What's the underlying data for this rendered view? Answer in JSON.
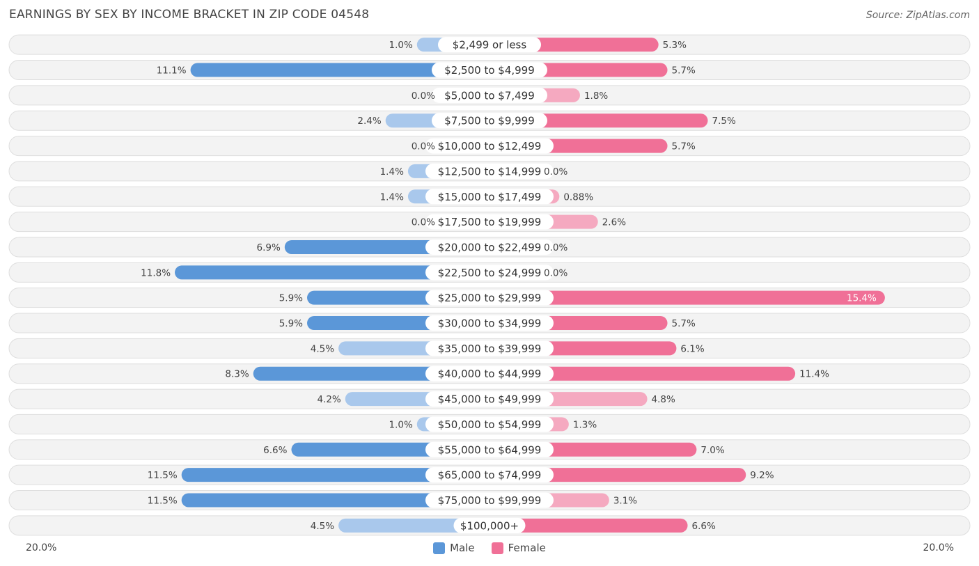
{
  "title": "EARNINGS BY SEX BY INCOME BRACKET IN ZIP CODE 04548",
  "source": "Source: ZipAtlas.com",
  "colors": {
    "male": "#5b97d8",
    "male_light": "#a9c8ec",
    "female": "#f07097",
    "female_light": "#f5a9c0"
  },
  "chart_data": {
    "type": "bar",
    "orientation": "horizontal-diverging",
    "title": "EARNINGS BY SEX BY INCOME BRACKET IN ZIP CODE 04548",
    "categories": [
      "$2,499 or less",
      "$2,500 to $4,999",
      "$5,000 to $7,499",
      "$7,500 to $9,999",
      "$10,000 to $12,499",
      "$12,500 to $14,999",
      "$15,000 to $17,499",
      "$17,500 to $19,999",
      "$20,000 to $22,499",
      "$22,500 to $24,999",
      "$25,000 to $29,999",
      "$30,000 to $34,999",
      "$35,000 to $39,999",
      "$40,000 to $44,999",
      "$45,000 to $49,999",
      "$50,000 to $54,999",
      "$55,000 to $64,999",
      "$65,000 to $74,999",
      "$75,000 to $99,999",
      "$100,000+"
    ],
    "series": [
      {
        "name": "Male",
        "values": [
          1.0,
          11.1,
          0.0,
          2.4,
          0.0,
          1.4,
          1.4,
          0.0,
          6.9,
          11.8,
          5.9,
          5.9,
          4.5,
          8.3,
          4.2,
          1.0,
          6.6,
          11.5,
          11.5,
          4.5
        ],
        "labels": [
          "1.0%",
          "11.1%",
          "0.0%",
          "2.4%",
          "0.0%",
          "1.4%",
          "1.4%",
          "0.0%",
          "6.9%",
          "11.8%",
          "5.9%",
          "5.9%",
          "4.5%",
          "8.3%",
          "4.2%",
          "1.0%",
          "6.6%",
          "11.5%",
          "11.5%",
          "4.5%"
        ]
      },
      {
        "name": "Female",
        "values": [
          5.3,
          5.7,
          1.8,
          7.5,
          5.7,
          0.0,
          0.88,
          2.6,
          0.0,
          0.0,
          15.4,
          5.7,
          6.1,
          11.4,
          4.8,
          1.3,
          7.0,
          9.2,
          3.1,
          6.6
        ],
        "labels": [
          "5.3%",
          "5.7%",
          "1.8%",
          "7.5%",
          "5.7%",
          "0.0%",
          "0.88%",
          "2.6%",
          "0.0%",
          "0.0%",
          "15.4%",
          "5.7%",
          "6.1%",
          "11.4%",
          "4.8%",
          "1.3%",
          "7.0%",
          "9.2%",
          "3.1%",
          "6.6%"
        ]
      }
    ],
    "xlim": [
      -20,
      20
    ],
    "axis_labels": {
      "left": "20.0%",
      "right": "20.0%"
    },
    "legend": {
      "position": "bottom-center",
      "entries": [
        "Male",
        "Female"
      ]
    }
  }
}
